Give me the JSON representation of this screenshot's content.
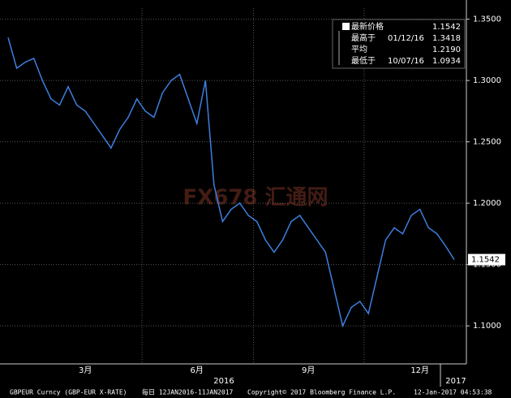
{
  "chart_data": {
    "type": "line",
    "categories": [
      null,
      null,
      null,
      null,
      null,
      null,
      null,
      null,
      null,
      "3月",
      null,
      null,
      null,
      null,
      null,
      null,
      null,
      null,
      null,
      null,
      null,
      null,
      "6月",
      null,
      null,
      null,
      null,
      null,
      null,
      null,
      null,
      null,
      null,
      null,
      null,
      "9月",
      null,
      null,
      null,
      null,
      null,
      null,
      null,
      null,
      null,
      null,
      null,
      null,
      "12月",
      null,
      null,
      null,
      null
    ],
    "series": [
      {
        "name": "GBPEUR",
        "color": "#3d7fe0",
        "values": [
          1.335,
          1.31,
          1.315,
          1.318,
          1.3,
          1.285,
          1.28,
          1.295,
          1.28,
          1.275,
          1.265,
          1.255,
          1.245,
          1.26,
          1.27,
          1.285,
          1.275,
          1.27,
          1.29,
          1.3,
          1.305,
          1.285,
          1.265,
          1.3,
          1.215,
          1.185,
          1.195,
          1.2,
          1.19,
          1.185,
          1.17,
          1.16,
          1.17,
          1.185,
          1.19,
          1.18,
          1.17,
          1.16,
          1.13,
          1.1,
          1.115,
          1.12,
          1.11,
          1.14,
          1.17,
          1.18,
          1.175,
          1.19,
          1.195,
          1.18,
          1.175,
          1.165,
          1.154
        ]
      }
    ],
    "year_labels": [
      "2016",
      "2017"
    ],
    "ylim": [
      1.069,
      1.359
    ],
    "yticks": [
      {
        "value": 1.1,
        "label": "1.1000"
      },
      {
        "value": 1.15,
        "label": "1.1500"
      },
      {
        "value": 1.2,
        "label": "1.2000"
      },
      {
        "value": 1.25,
        "label": "1.2500"
      },
      {
        "value": 1.3,
        "label": "1.3000"
      },
      {
        "value": 1.35,
        "label": "1.3500"
      }
    ],
    "grid": true,
    "legend": [
      {
        "label": "最新价格",
        "date": "",
        "value": "1.1542"
      },
      {
        "label": "最高于",
        "date": "01/12/16",
        "value": "1.3418"
      },
      {
        "label": "平均",
        "date": "",
        "value": "1.2190"
      },
      {
        "label": "最低于",
        "date": "10/07/16",
        "value": "1.0934"
      }
    ],
    "watermark": "FX678 汇通网",
    "footer": [
      "GBPEUR Curncy (GBP-EUR X-RATE)",
      "每日 12JAN2016-11JAN2017",
      "Copyright© 2017 Bloomberg Finance L.P.",
      "12-Jan-2017 04:53:38"
    ]
  }
}
